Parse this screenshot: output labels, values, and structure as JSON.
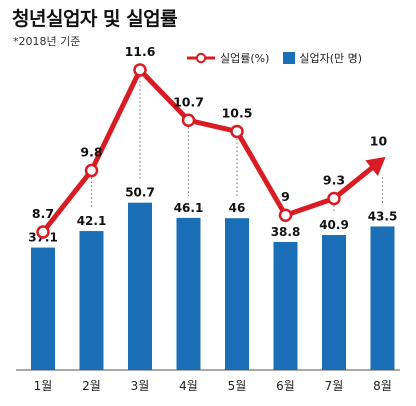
{
  "title": "청년실업자 및 실업률",
  "subtitle": "*2018년 기준",
  "legend": {
    "rate_label": "실업률(%)",
    "count_label": "실업자(만 명)"
  },
  "colors": {
    "bar": "#1a6fb7",
    "line": "#d91c24",
    "axis": "#555555",
    "guide": "#777777"
  },
  "chart_data": {
    "type": "bar+line",
    "categories": [
      "1월",
      "2월",
      "3월",
      "4월",
      "5월",
      "6월",
      "7월",
      "8월"
    ],
    "series": [
      {
        "name": "실업자(만 명)",
        "type": "bar",
        "values": [
          37.1,
          42.1,
          50.7,
          46.1,
          46,
          38.8,
          40.9,
          43.5
        ]
      },
      {
        "name": "실업률(%)",
        "type": "line",
        "values": [
          8.7,
          9.8,
          11.6,
          10.7,
          10.5,
          9,
          9.3,
          10
        ]
      }
    ],
    "bar_labels": [
      "37.1",
      "42.1",
      "50.7",
      "46.1",
      "46",
      "38.8",
      "40.9",
      "43.5"
    ],
    "line_labels": [
      "8.7",
      "9.8",
      "11.6",
      "10.7",
      "10.5",
      "9",
      "9.3",
      "10"
    ],
    "legend_position": "top-right",
    "grid": false
  }
}
